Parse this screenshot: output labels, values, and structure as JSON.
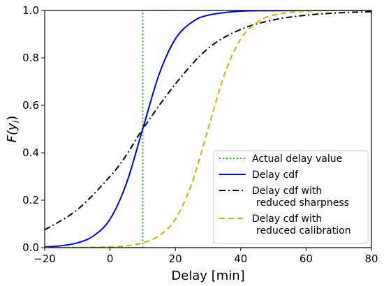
{
  "chart_data": {
    "type": "line",
    "xlabel": "Delay [min]",
    "ylabel": {
      "base": "F(y",
      "sub": "i",
      "close": ")"
    },
    "xlim": [
      -20,
      80
    ],
    "ylim": [
      0.0,
      1.0
    ],
    "x_ticks": [
      -20,
      0,
      20,
      40,
      60,
      80
    ],
    "x_tick_labels": [
      "−20",
      "0",
      "20",
      "40",
      "60",
      "80"
    ],
    "y_ticks": [
      0.0,
      0.2,
      0.4,
      0.6,
      0.8,
      1.0
    ],
    "y_tick_labels": [
      "0.0",
      "0.2",
      "0.4",
      "0.6",
      "0.8",
      "1.0"
    ],
    "grid": false,
    "legend_position": "lower-right",
    "series": [
      {
        "name": "Actual delay value",
        "color": "#2ca02c",
        "style": "dotted",
        "x": [
          -20,
          10,
          10,
          80
        ],
        "y": [
          0.0,
          0.0,
          1.0,
          1.0
        ]
      },
      {
        "name": "Delay cdf",
        "color": "#0000dd",
        "style": "solid",
        "x": [
          -20,
          -15,
          -10,
          -5,
          0,
          5,
          10,
          15,
          20,
          25,
          30,
          40,
          50,
          60,
          80
        ],
        "y": [
          0.003,
          0.008,
          0.02,
          0.05,
          0.12,
          0.27,
          0.5,
          0.73,
          0.88,
          0.95,
          0.98,
          0.997,
          0.999,
          1.0,
          1.0
        ]
      },
      {
        "name": "Delay cdf with\nreduced sharpness",
        "color": "#000000",
        "style": "dashdot",
        "x": [
          -20,
          -10,
          0,
          5,
          10,
          20,
          30,
          40,
          50,
          60,
          70,
          80
        ],
        "y": [
          0.075,
          0.16,
          0.3,
          0.39,
          0.5,
          0.69,
          0.84,
          0.92,
          0.96,
          0.98,
          0.99,
          0.995
        ]
      },
      {
        "name": "Delay cdf with\nreduced calibration",
        "color": "#c8b400",
        "style": "dashed",
        "x": [
          -20,
          -10,
          0,
          5,
          10,
          15,
          20,
          25,
          30,
          35,
          40,
          45,
          50,
          60,
          80
        ],
        "y": [
          0.0,
          0.001,
          0.003,
          0.008,
          0.02,
          0.05,
          0.12,
          0.27,
          0.5,
          0.73,
          0.88,
          0.95,
          0.98,
          0.997,
          1.0
        ]
      }
    ]
  }
}
